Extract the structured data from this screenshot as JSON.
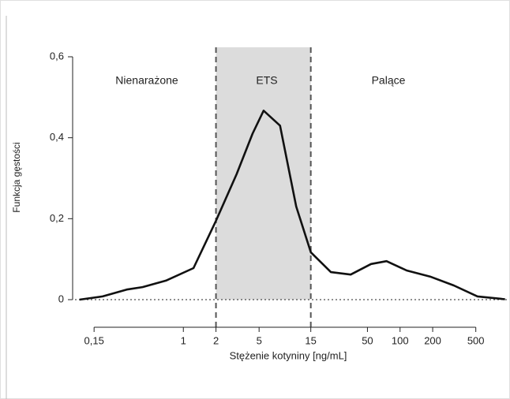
{
  "chart_data": {
    "type": "line",
    "x_label": "Stężenie kotyniny [ng/mL]",
    "y_label": "Funkcja gęstości",
    "log_x": true,
    "xlim": [
      0.1,
      1000
    ],
    "ylim": [
      0,
      0.6
    ],
    "xticks": [
      {
        "value": 0.15,
        "label": "0,15"
      },
      1,
      2,
      5,
      15,
      50,
      100,
      200,
      500
    ],
    "yticks": [
      0,
      {
        "value": 0.2,
        "label": "0,2"
      },
      {
        "value": 0.4,
        "label": "0,4"
      },
      {
        "value": 0.6,
        "label": "0,6"
      }
    ],
    "shaded_region": [
      2,
      15
    ],
    "shade_color": "#dcdcdc",
    "annotations": [
      "Nienarażone",
      "ETS",
      "Palące"
    ],
    "x": [
      0.11,
      0.18,
      0.3,
      0.42,
      0.69,
      1.24,
      2,
      3.1,
      4.35,
      5.5,
      7.8,
      11,
      15,
      23,
      35,
      54,
      75,
      115,
      189,
      313,
      518,
      930
    ],
    "series": [
      {
        "color": "#111111",
        "values": [
          0,
          0.008,
          0.025,
          0.031,
          0.047,
          0.078,
          0.195,
          0.31,
          0.41,
          0.467,
          0.43,
          0.23,
          0.117,
          0.068,
          0.062,
          0.088,
          0.095,
          0.072,
          0.057,
          0.035,
          0.008,
          0.001
        ]
      }
    ]
  }
}
